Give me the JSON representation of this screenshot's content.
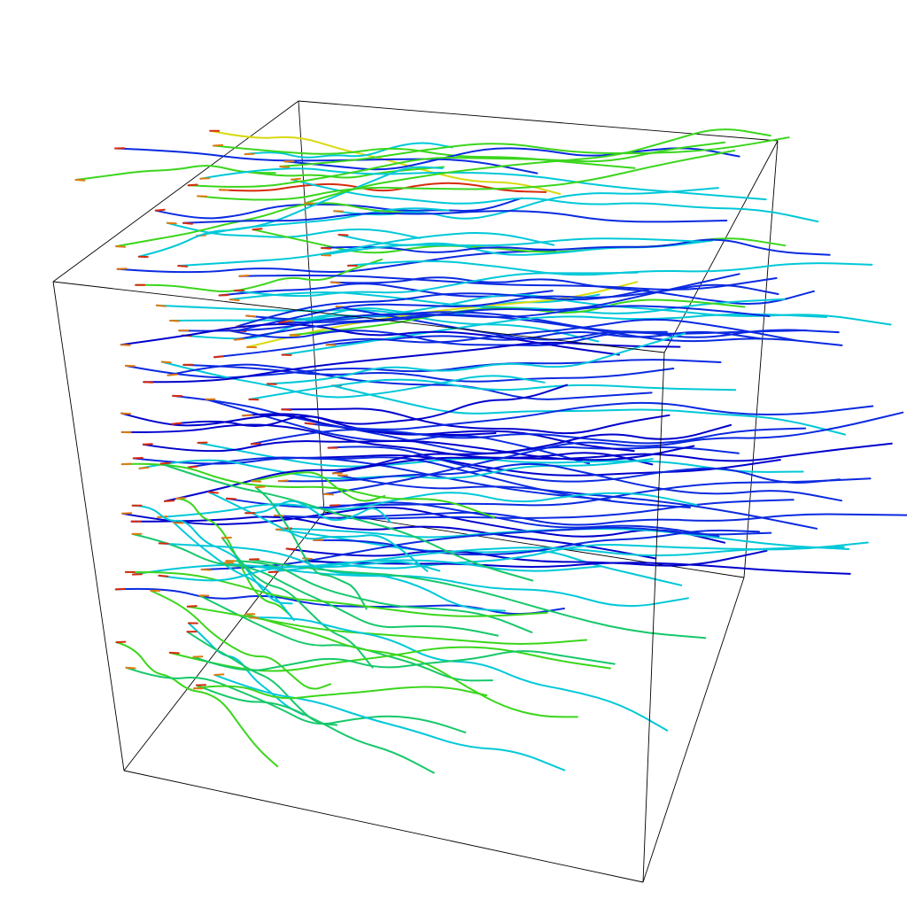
{
  "scene": {
    "type": "3d-streamline-visualization",
    "bounding_box": "wireframe cube",
    "background_color": "#ffffff",
    "edge_color": "#000000"
  },
  "colormap": {
    "name": "jet",
    "stops": [
      "#0000cc",
      "#0a2ae0",
      "#00c8d8",
      "#16c86a",
      "#3ad61c",
      "#8ed80c",
      "#d8da10",
      "#e07a10",
      "#d82a0c"
    ],
    "description_of_order": "low-to-high"
  },
  "streamline_groups": [
    {
      "name": "upper-front-seeds",
      "dominant_colors": [
        "#d82a0c",
        "#d8da10",
        "#3ad61c"
      ]
    },
    {
      "name": "upper-back-flow",
      "dominant_colors": [
        "#3ad61c",
        "#00c8d8",
        "#0a2ae0"
      ]
    },
    {
      "name": "middle-dense-flow",
      "dominant_colors": [
        "#0a2ae0",
        "#0000cc",
        "#00c8d8"
      ]
    },
    {
      "name": "lower-front-flow",
      "dominant_colors": [
        "#3ad61c",
        "#16c86a",
        "#00c8d8"
      ]
    }
  ]
}
